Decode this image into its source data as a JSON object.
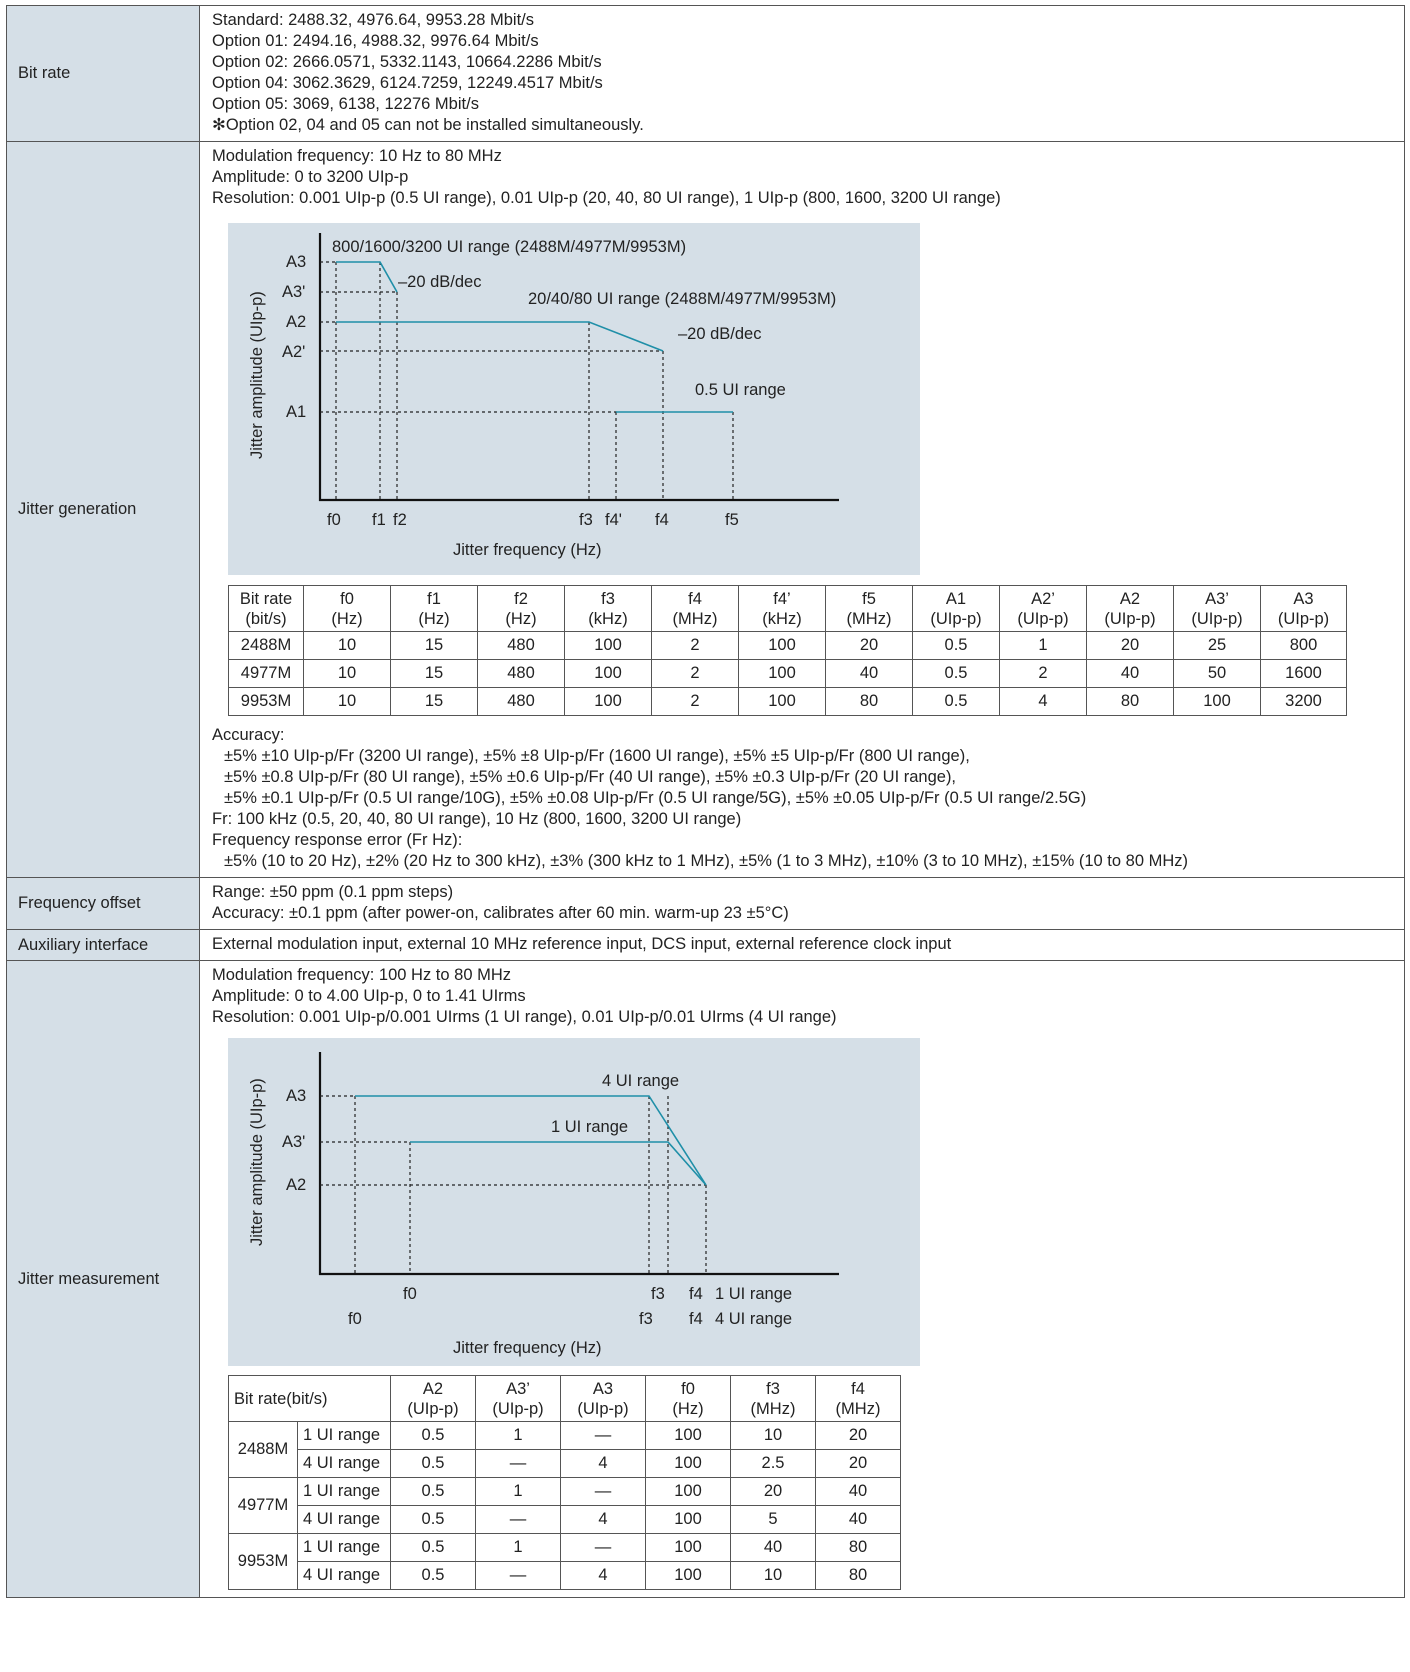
{
  "bit_rate": {
    "label": "Bit rate",
    "lines": [
      "Standard: 2488.32, 4976.64, 9953.28 Mbit/s",
      "Option 01: 2494.16, 4988.32, 9976.64 Mbit/s",
      "Option 02: 2666.0571, 5332.1143, 10664.2286 Mbit/s",
      "Option 04: 3062.3629, 6124.7259, 12249.4517 Mbit/s",
      "Option 05: 3069, 6138, 12276 Mbit/s",
      "✻Option 02, 04 and 05 can not be installed simultaneously."
    ]
  },
  "jitter_generation": {
    "label": "Jitter generation",
    "intro": [
      "Modulation frequency: 10 Hz to 80 MHz",
      "Amplitude: 0 to 3200 UIp-p",
      "Resolution: 0.001 UIp-p (0.5 UI range), 0.01 UIp-p (20, 40, 80 UI range), 1 UIp-p (800, 1600, 3200 UI range)"
    ],
    "chart": {
      "ylabel": "Jitter amplitude (UIp-p)",
      "xlabel": "Jitter frequency (Hz)",
      "y_ticks": [
        "A3",
        "A3'",
        "A2",
        "A2'",
        "A1"
      ],
      "x_ticks": [
        "f0",
        "f1",
        "f2",
        "f3",
        "f4'",
        "f4",
        "f5"
      ],
      "annotations": [
        "800/1600/3200 UI range (2488M/4977M/9953M)",
        "–20 dB/dec",
        "20/40/80 UI range (2488M/4977M/9953M)",
        "–20 dB/dec",
        "0.5 UI range"
      ],
      "line_color": "#1f8fa8"
    },
    "table": {
      "headers": [
        [
          "Bit rate",
          "(bit/s)"
        ],
        [
          "f0",
          "(Hz)"
        ],
        [
          "f1",
          "(Hz)"
        ],
        [
          "f2",
          "(Hz)"
        ],
        [
          "f3",
          "(kHz)"
        ],
        [
          "f4",
          "(MHz)"
        ],
        [
          "f4’",
          "(kHz)"
        ],
        [
          "f5",
          "(MHz)"
        ],
        [
          "A1",
          "(UIp-p)"
        ],
        [
          "A2’",
          "(UIp-p)"
        ],
        [
          "A2",
          "(UIp-p)"
        ],
        [
          "A3’",
          "(UIp-p)"
        ],
        [
          "A3",
          "(UIp-p)"
        ]
      ],
      "rows": [
        [
          "2488M",
          "10",
          "15",
          "480",
          "100",
          "2",
          "100",
          "20",
          "0.5",
          "1",
          "20",
          "25",
          "800"
        ],
        [
          "4977M",
          "10",
          "15",
          "480",
          "100",
          "2",
          "100",
          "40",
          "0.5",
          "2",
          "40",
          "50",
          "1600"
        ],
        [
          "9953M",
          "10",
          "15",
          "480",
          "100",
          "2",
          "100",
          "80",
          "0.5",
          "4",
          "80",
          "100",
          "3200"
        ]
      ]
    },
    "accuracy_title": "Accuracy:",
    "accuracy_lines": [
      "±5% ±10 UIp-p/Fr (3200 UI range), ±5% ±8 UIp-p/Fr (1600 UI range), ±5% ±5 UIp-p/Fr (800 UI range),",
      "±5% ±0.8 UIp-p/Fr (80 UI range), ±5% ±0.6 UIp-p/Fr (40 UI range), ±5% ±0.3 UIp-p/Fr (20 UI range),",
      "±5% ±0.1 UIp-p/Fr (0.5 UI range/10G), ±5% ±0.08 UIp-p/Fr (0.5 UI range/5G),  ±5% ±0.05 UIp-p/Fr (0.5 UI range/2.5G)"
    ],
    "fr_line": "Fr: 100 kHz (0.5, 20, 40, 80 UI range), 10 Hz (800, 1600, 3200 UI range)",
    "freq_resp_title": "Frequency response error (Fr Hz):",
    "freq_resp_line": "±5% (10 to 20 Hz), ±2% (20 Hz to 300 kHz), ±3% (300 kHz to 1 MHz), ±5% (1 to 3 MHz), ±10% (3 to 10 MHz), ±15% (10 to 80 MHz)"
  },
  "frequency_offset": {
    "label": "Frequency offset",
    "lines": [
      "Range: ±50 ppm (0.1 ppm steps)",
      "Accuracy: ±0.1 ppm (after power-on, calibrates after 60 min. warm-up 23 ±5°C)"
    ]
  },
  "auxiliary_interface": {
    "label": "Auxiliary interface",
    "text": "External modulation input, external 10 MHz reference input, DCS input, external reference clock input"
  },
  "jitter_measurement": {
    "label": "Jitter measurement",
    "intro": [
      "Modulation frequency: 100 Hz to 80 MHz",
      "Amplitude: 0 to 4.00 UIp-p, 0 to 1.41 UIrms",
      "Resolution: 0.001 UIp-p/0.001 UIrms (1 UI range), 0.01 UIp-p/0.01 UIrms (4 UI range)"
    ],
    "chart": {
      "ylabel": "Jitter amplitude (UIp-p)",
      "xlabel": "Jitter frequency (Hz)",
      "y_ticks": [
        "A3",
        "A3'",
        "A2"
      ],
      "x_ticks_row1": [
        "f0",
        "f3",
        "f4",
        "1 UI range"
      ],
      "x_ticks_row2": [
        "f0",
        "f3",
        "f4",
        "4 UI range"
      ],
      "annotations": [
        "4 UI range",
        "1 UI range"
      ]
    },
    "table": {
      "header_first": "Bit rate(bit/s)",
      "headers": [
        [
          "A2",
          "(UIp-p)"
        ],
        [
          "A3’",
          "(UIp-p)"
        ],
        [
          "A3",
          "(UIp-p)"
        ],
        [
          "f0",
          "(Hz)"
        ],
        [
          "f3",
          "(MHz)"
        ],
        [
          "f4",
          "(MHz)"
        ]
      ],
      "groups": [
        {
          "rate": "2488M",
          "rows": [
            [
              "1 UI range",
              "0.5",
              "1",
              "—",
              "100",
              "10",
              "20"
            ],
            [
              "4 UI range",
              "0.5",
              "—",
              "4",
              "100",
              "2.5",
              "20"
            ]
          ]
        },
        {
          "rate": "4977M",
          "rows": [
            [
              "1 UI range",
              "0.5",
              "1",
              "—",
              "100",
              "20",
              "40"
            ],
            [
              "4 UI range",
              "0.5",
              "—",
              "4",
              "100",
              "5",
              "40"
            ]
          ]
        },
        {
          "rate": "9953M",
          "rows": [
            [
              "1 UI range",
              "0.5",
              "1",
              "—",
              "100",
              "40",
              "80"
            ],
            [
              "4 UI range",
              "0.5",
              "—",
              "4",
              "100",
              "10",
              "80"
            ]
          ]
        }
      ]
    }
  }
}
